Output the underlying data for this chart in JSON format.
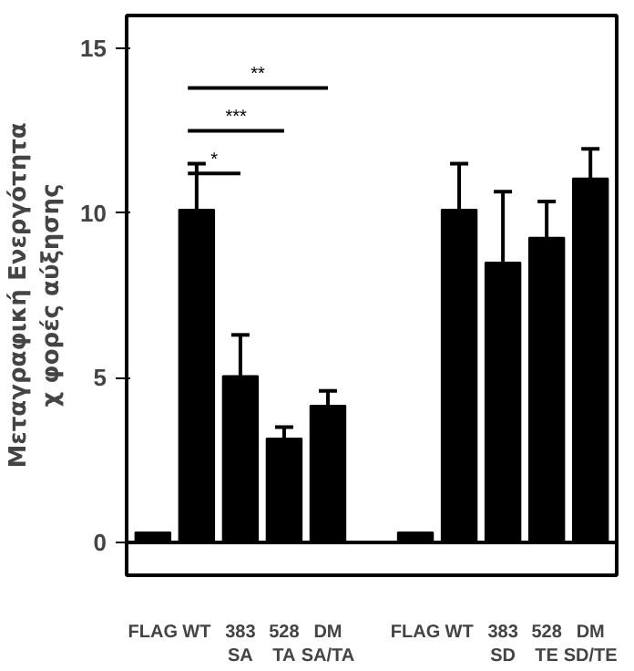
{
  "chart_data": {
    "type": "bar",
    "ylabel": "Μεταγραφική Ενεργότητα\nχ φορές αύξησης",
    "categories": [
      "FLAG",
      "WT",
      "383\nSA",
      "528\nTA",
      "DM\nSA/TA",
      null,
      "FLAG",
      "WT",
      "383\nSD",
      "528\nTE",
      "DM\nSD/TE"
    ],
    "values": [
      0.3,
      10.1,
      5.05,
      3.15,
      4.15,
      null,
      0.3,
      10.1,
      8.5,
      9.25,
      11.05
    ],
    "errors": [
      null,
      1.4,
      1.25,
      0.35,
      0.45,
      null,
      null,
      1.4,
      2.15,
      1.1,
      0.9
    ],
    "ref_lines": [
      {
        "axis": "y",
        "value": 0
      }
    ],
    "color": "#000000",
    "ylim": [
      -1,
      16
    ],
    "yticks": [
      0,
      5,
      10,
      15
    ],
    "grid": false,
    "annotations": [
      "*",
      "***",
      "**"
    ]
  }
}
